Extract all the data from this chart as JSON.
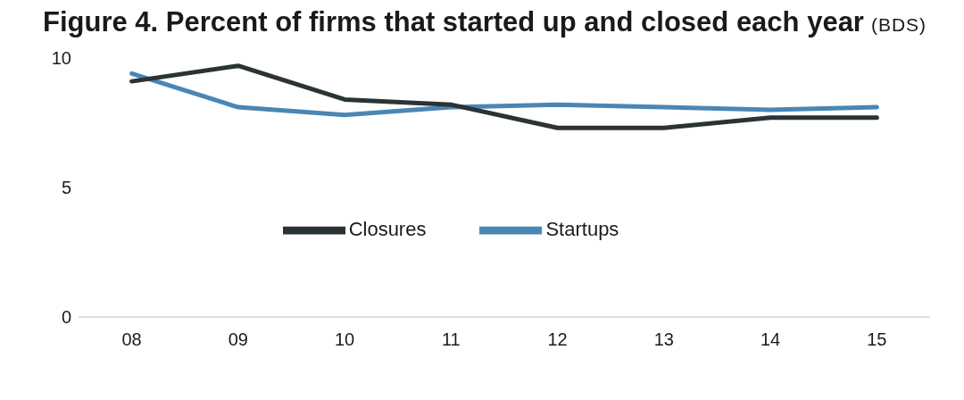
{
  "chart_data": {
    "type": "line",
    "title": "Figure 4. Percent of firms that started up and closed each year",
    "subtitle": "(BDS)",
    "categories": [
      "08",
      "09",
      "10",
      "11",
      "12",
      "13",
      "14",
      "15"
    ],
    "series": [
      {
        "name": "Startups",
        "color": "#4a86b4",
        "values": [
          9.4,
          8.1,
          7.8,
          8.1,
          8.2,
          8.1,
          8.0,
          8.1
        ]
      },
      {
        "name": "Closures",
        "color": "#2b3336",
        "values": [
          9.1,
          9.7,
          8.4,
          8.2,
          7.3,
          7.3,
          7.7,
          7.7
        ]
      }
    ],
    "ylim": [
      0,
      10
    ],
    "yticks": [
      0,
      5,
      10
    ],
    "grid": false,
    "legend": "center",
    "marker": "none",
    "line_style": "solid"
  }
}
